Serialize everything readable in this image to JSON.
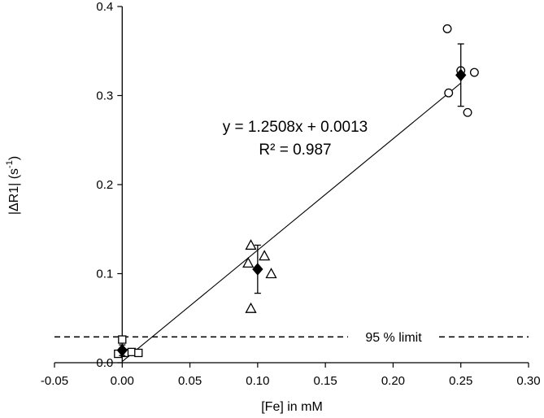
{
  "chart_data": {
    "type": "scatter",
    "title": "",
    "xlabel": "[Fe] in mM",
    "ylabel_parts": {
      "main": "|ΔR1| (s",
      "sup": "-1",
      "close": ")"
    },
    "xlim": [
      -0.05,
      0.3
    ],
    "ylim": [
      0,
      0.4
    ],
    "xticks": [
      -0.05,
      0.0,
      0.05,
      0.1,
      0.15,
      0.2,
      0.25,
      0.3
    ],
    "xtick_labels": [
      "-0.05",
      "0.00",
      "0.05",
      "0.10",
      "0.15",
      "0.20",
      "0.25",
      "0.30"
    ],
    "yticks": [
      0,
      0.1,
      0.2,
      0.3,
      0.4
    ],
    "ytick_labels": [
      "0.0",
      "0.1",
      "0.2",
      "0.3",
      "0.4"
    ],
    "grid": false,
    "series": [
      {
        "marker": "square",
        "points": [
          {
            "x": -0.003,
            "y": 0.01
          },
          {
            "x": 0.0,
            "y": 0.026
          },
          {
            "x": 0.002,
            "y": 0.011
          },
          {
            "x": 0.007,
            "y": 0.012
          },
          {
            "x": 0.012,
            "y": 0.011
          }
        ]
      },
      {
        "marker": "triangle",
        "points": [
          {
            "x": 0.093,
            "y": 0.112
          },
          {
            "x": 0.095,
            "y": 0.132
          },
          {
            "x": 0.095,
            "y": 0.061
          },
          {
            "x": 0.105,
            "y": 0.12
          },
          {
            "x": 0.11,
            "y": 0.1
          }
        ]
      },
      {
        "marker": "circle",
        "points": [
          {
            "x": 0.24,
            "y": 0.375
          },
          {
            "x": 0.241,
            "y": 0.303
          },
          {
            "x": 0.25,
            "y": 0.328
          },
          {
            "x": 0.255,
            "y": 0.281
          },
          {
            "x": 0.26,
            "y": 0.326
          }
        ]
      }
    ],
    "means": [
      {
        "x": 0.0,
        "y": 0.014,
        "err": 0.006
      },
      {
        "x": 0.1,
        "y": 0.105,
        "err": 0.027
      },
      {
        "x": 0.25,
        "y": 0.323,
        "err": 0.035
      }
    ],
    "fit": {
      "slope": 1.2508,
      "intercept": 0.0013,
      "x_range": [
        0.0,
        0.25
      ],
      "equation": "y = 1.2508x + 0.0013",
      "r2": "R² = 0.987"
    },
    "limit_line": {
      "y": 0.029,
      "label": "95 % limit"
    }
  }
}
